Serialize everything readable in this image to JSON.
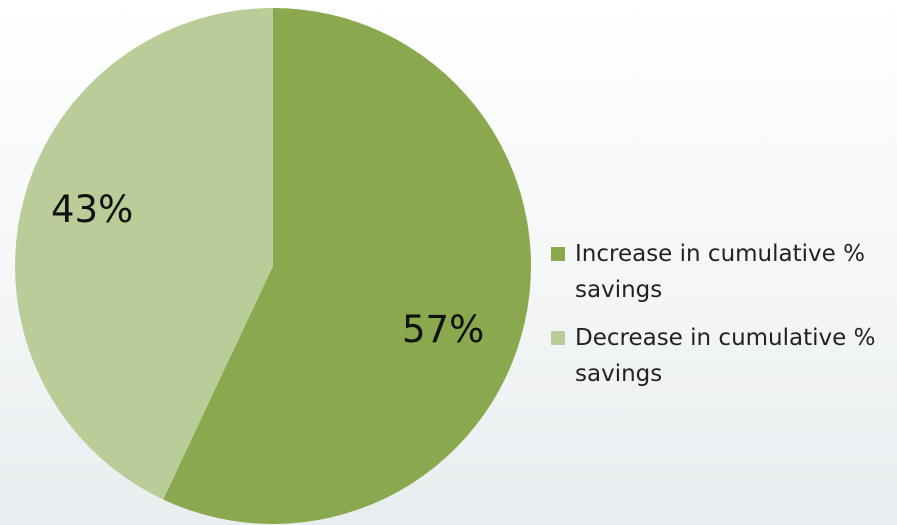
{
  "chart_data": {
    "type": "pie",
    "title": "",
    "slices": [
      {
        "name": "Increase in cumulative % savings",
        "value": 57,
        "label": "57%",
        "color": "#8aa84e"
      },
      {
        "name": "Decrease in cumulative % savings",
        "value": 43,
        "label": "43%",
        "color": "#bacd98"
      }
    ],
    "start_angle_deg": 0,
    "direction": "clockwise",
    "legend": {
      "position": "right",
      "items": [
        {
          "label": "Increase in cumulative % savings",
          "color": "#8aa84e"
        },
        {
          "label": "Decrease in cumulative % savings",
          "color": "#bacd98"
        }
      ]
    }
  }
}
